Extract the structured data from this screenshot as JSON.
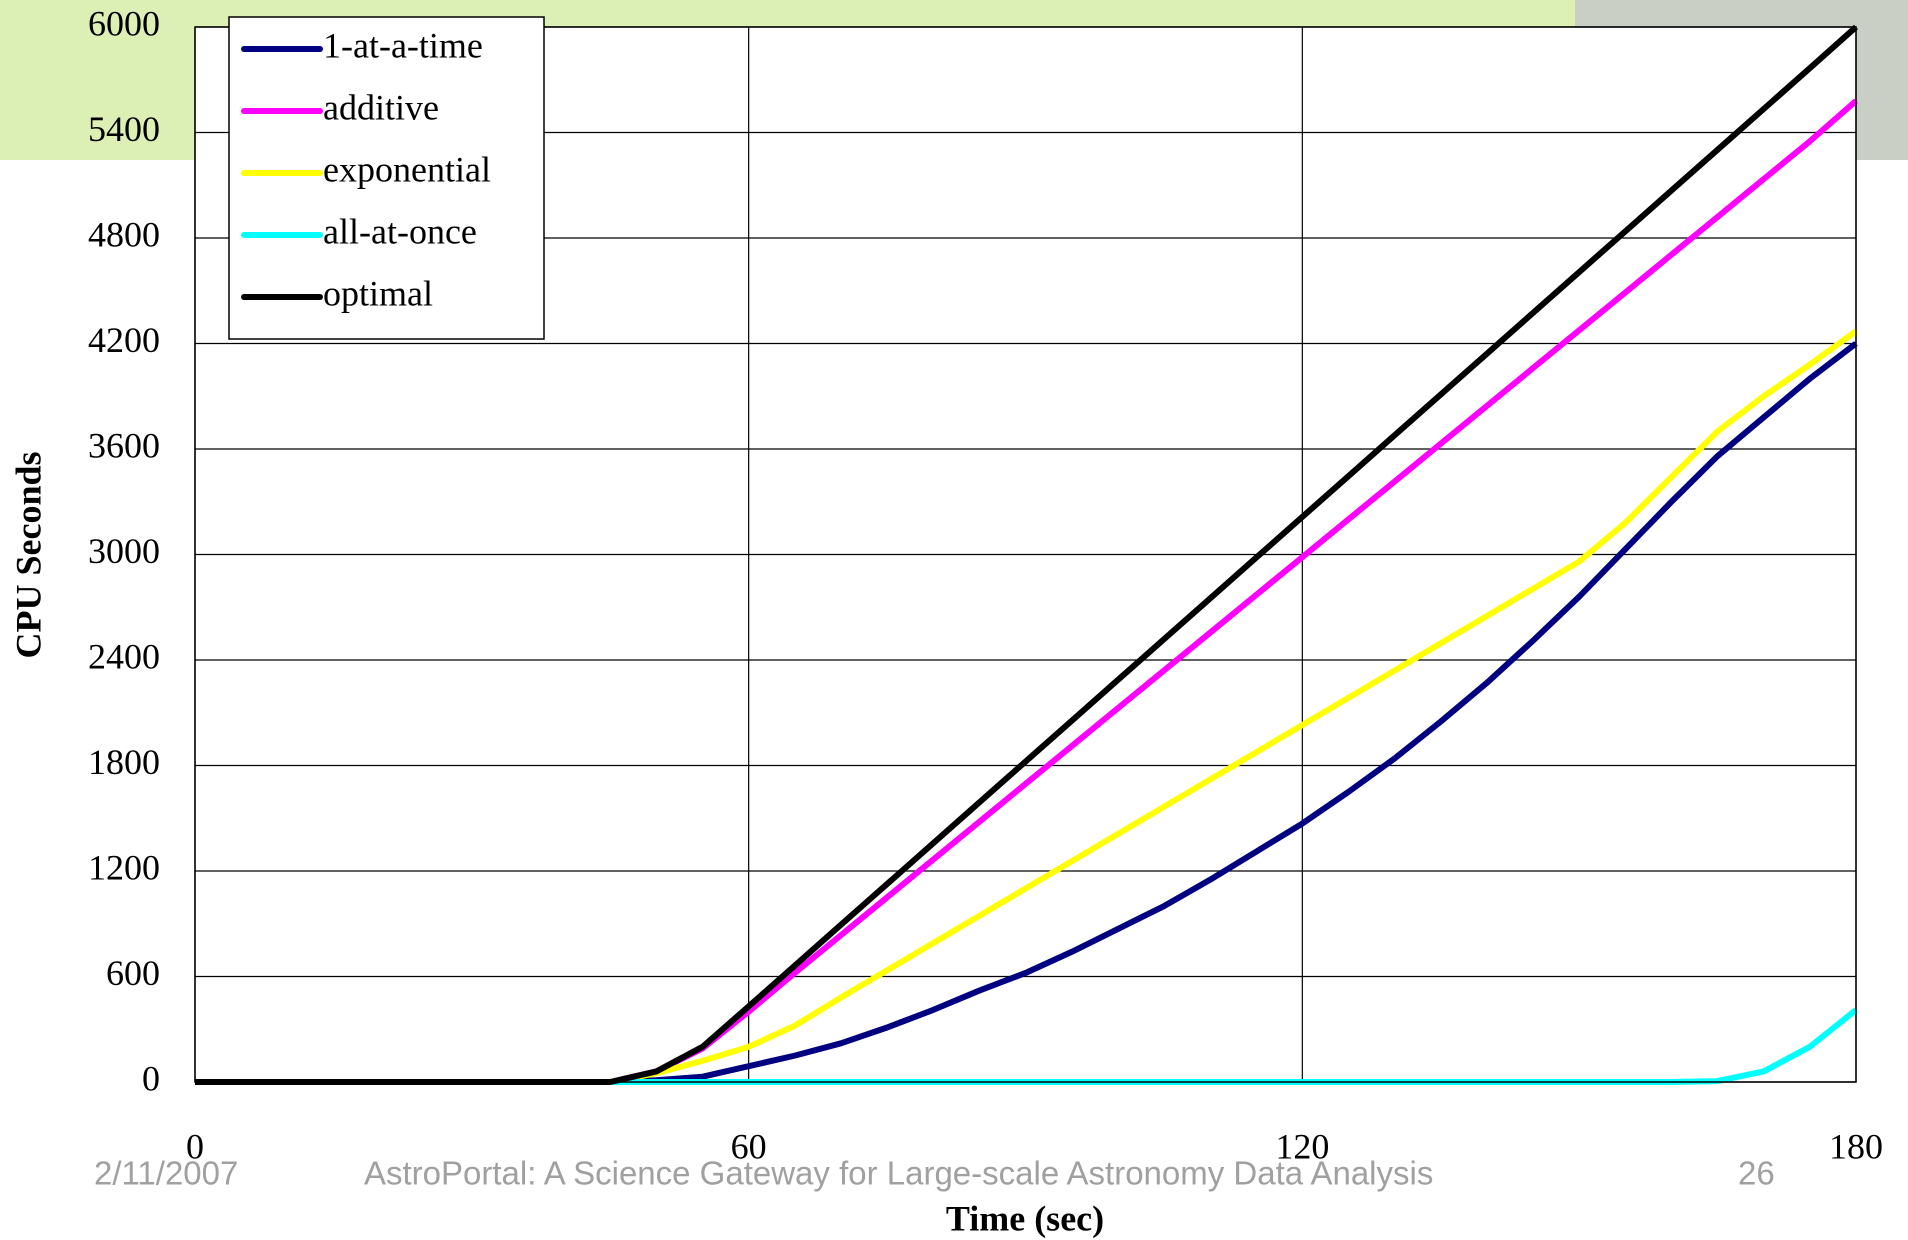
{
  "chart_data": {
    "type": "line",
    "x_label": "Time (sec)",
    "y_label": "CPU Seconds",
    "x": [
      0,
      5,
      10,
      15,
      20,
      25,
      30,
      35,
      40,
      45,
      50,
      55,
      60,
      65,
      70,
      75,
      80,
      85,
      90,
      95,
      100,
      105,
      110,
      115,
      120,
      125,
      130,
      135,
      140,
      145,
      150,
      155,
      160,
      165,
      170,
      175,
      180
    ],
    "series": [
      {
        "name": "1-at-a-time",
        "color": "#000080",
        "values": [
          0,
          0,
          0,
          0,
          0,
          0,
          0,
          0,
          0,
          0,
          10,
          30,
          90,
          150,
          220,
          310,
          410,
          520,
          620,
          740,
          870,
          1000,
          1150,
          1310,
          1470,
          1650,
          1840,
          2050,
          2270,
          2510,
          2760,
          3030,
          3300,
          3560,
          3780,
          4000,
          4200
        ]
      },
      {
        "name": "additive",
        "color": "#ff00ff",
        "values": [
          0,
          0,
          0,
          0,
          0,
          0,
          0,
          0,
          0,
          0,
          60,
          190,
          400,
          620,
          835,
          1050,
          1265,
          1480,
          1695,
          1910,
          2125,
          2340,
          2555,
          2770,
          2985,
          3200,
          3415,
          3630,
          3845,
          4060,
          4275,
          4490,
          4705,
          4920,
          5135,
          5350,
          5580
        ]
      },
      {
        "name": "exponential",
        "color": "#ffff00",
        "values": [
          0,
          0,
          0,
          0,
          0,
          0,
          0,
          0,
          0,
          0,
          50,
          120,
          200,
          320,
          480,
          635,
          790,
          945,
          1100,
          1255,
          1410,
          1565,
          1720,
          1875,
          2030,
          2185,
          2340,
          2495,
          2650,
          2805,
          2960,
          3180,
          3440,
          3700,
          3900,
          4080,
          4270
        ]
      },
      {
        "name": "all-at-once",
        "color": "#00ffff",
        "values": [
          0,
          0,
          0,
          0,
          0,
          0,
          0,
          0,
          0,
          0,
          0,
          0,
          0,
          0,
          0,
          0,
          0,
          0,
          0,
          0,
          0,
          0,
          0,
          0,
          0,
          0,
          0,
          0,
          0,
          0,
          0,
          0,
          0,
          5,
          60,
          200,
          410
        ]
      },
      {
        "name": "optimal",
        "color": "#000000",
        "values": [
          0,
          0,
          0,
          0,
          0,
          0,
          0,
          0,
          0,
          0,
          60,
          200,
          430,
          662,
          894,
          1126,
          1358,
          1590,
          1822,
          2054,
          2286,
          2518,
          2750,
          2982,
          3214,
          3446,
          3678,
          3910,
          4142,
          4374,
          4606,
          4838,
          5070,
          5302,
          5534,
          5766,
          6000
        ]
      }
    ],
    "xlim": [
      0,
      180
    ],
    "xticks": [
      0,
      60,
      120,
      180
    ],
    "ylim": [
      0,
      6000
    ],
    "yticks": [
      0,
      600,
      1200,
      1800,
      2400,
      3000,
      3600,
      4200,
      4800,
      5400,
      6000
    ],
    "grid": true,
    "legend": "top-left"
  },
  "footer": {
    "date": "2/11/2007",
    "title": "AstroPortal: A Science Gateway for Large-scale Astronomy Data Analysis",
    "page": "26"
  }
}
